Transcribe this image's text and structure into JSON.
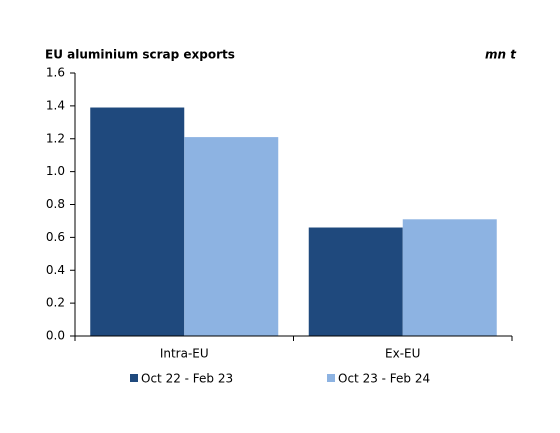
{
  "chart_data": {
    "type": "bar",
    "title": "EU aluminium scrap exports",
    "unit": "mn t",
    "categories": [
      "Intra-EU",
      "Ex-EU"
    ],
    "series": [
      {
        "name": "Oct 22 - Feb 23",
        "color": "#1f497d",
        "values": [
          1.39,
          0.66
        ]
      },
      {
        "name": "Oct 23 - Feb 24",
        "color": "#8db3e2",
        "values": [
          1.21,
          0.71
        ]
      }
    ],
    "ylim": [
      0,
      1.6
    ],
    "yticks": [
      {
        "value": 0,
        "label": "0.0"
      },
      0.2,
      0.4,
      0.6,
      0.8,
      {
        "value": 1,
        "label": "1.0"
      },
      1.2,
      1.4,
      1.6
    ],
    "grid": false,
    "legend": "bottom"
  }
}
